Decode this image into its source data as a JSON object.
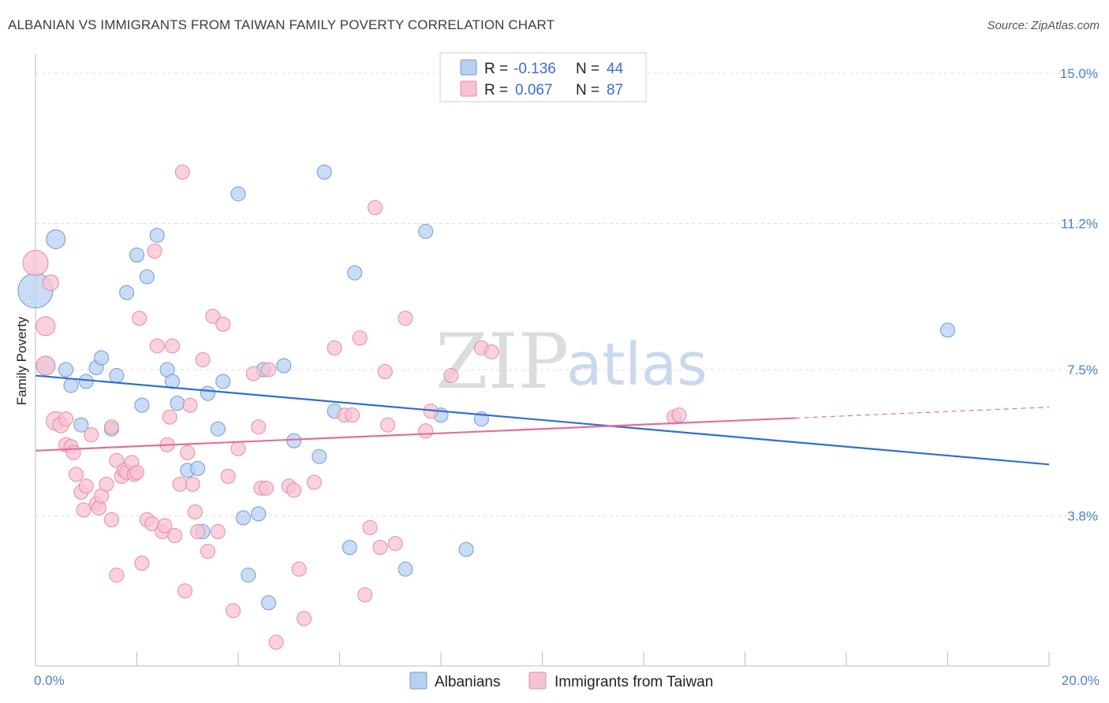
{
  "header": {
    "title": "ALBANIAN VS IMMIGRANTS FROM TAIWAN FAMILY POVERTY CORRELATION CHART",
    "source": "Source: ZipAtlas.com"
  },
  "watermark": {
    "zip": "ZIP",
    "atlas": "atlas"
  },
  "colors": {
    "blue_fill": "#b8d0f1",
    "blue_stroke": "#6f9ad8",
    "blue_line": "#2f6fcf",
    "pink_fill": "#f7c3d2",
    "pink_stroke": "#e88aa6",
    "pink_line": "#e0709a",
    "grid": "#dddddd",
    "axis_tick_label": "#4a7fd0"
  },
  "legend": {
    "rows": [
      {
        "r_label": "R = ",
        "r_value": "-0.136",
        "n_label": "N = ",
        "n_value": "44"
      },
      {
        "r_label": "R = ",
        "r_value": "0.067",
        "n_label": "N = ",
        "n_value": "87"
      }
    ]
  },
  "chart_data": {
    "type": "scatter",
    "title": "ALBANIAN VS IMMIGRANTS FROM TAIWAN FAMILY POVERTY CORRELATION CHART",
    "xlabel": "",
    "ylabel": "Family Poverty",
    "xlim": [
      0,
      20
    ],
    "ylim": [
      0,
      15.3
    ],
    "x_tick_labels": [
      "0.0%",
      "20.0%"
    ],
    "y_ticks": [
      3.8,
      7.5,
      11.2,
      15.0
    ],
    "y_tick_labels": [
      "3.8%",
      "7.5%",
      "11.2%",
      "15.0%"
    ],
    "grid": true,
    "legend_position": "top-center",
    "series": [
      {
        "name": "Albanians",
        "color": "#6f9ad8",
        "trend": {
          "x": [
            0,
            20
          ],
          "y": [
            7.35,
            5.1
          ],
          "dashed_from": null
        },
        "points": [
          [
            0.4,
            10.8,
            12
          ],
          [
            0.0,
            9.5,
            22
          ],
          [
            0.2,
            7.6,
            12
          ],
          [
            0.6,
            7.5,
            9
          ],
          [
            0.7,
            7.1,
            9
          ],
          [
            1.0,
            7.2,
            9
          ],
          [
            1.2,
            7.55,
            9
          ],
          [
            1.3,
            7.8,
            9
          ],
          [
            1.6,
            7.35,
            9
          ],
          [
            0.9,
            6.1,
            9
          ],
          [
            1.5,
            6.0,
            9
          ],
          [
            1.8,
            9.45,
            9
          ],
          [
            2.0,
            10.4,
            9
          ],
          [
            2.2,
            9.85,
            9
          ],
          [
            2.4,
            10.9,
            9
          ],
          [
            2.1,
            6.6,
            9
          ],
          [
            2.6,
            7.5,
            9
          ],
          [
            2.7,
            7.2,
            9
          ],
          [
            2.8,
            6.65,
            9
          ],
          [
            3.4,
            6.9,
            9
          ],
          [
            3.7,
            7.2,
            9
          ],
          [
            3.0,
            4.95,
            9
          ],
          [
            3.2,
            5.0,
            9
          ],
          [
            3.3,
            3.4,
            9
          ],
          [
            3.6,
            6.0,
            9
          ],
          [
            4.0,
            11.95,
            9
          ],
          [
            4.1,
            3.75,
            9
          ],
          [
            4.2,
            2.3,
            9
          ],
          [
            4.4,
            3.85,
            9
          ],
          [
            4.5,
            7.5,
            9
          ],
          [
            4.9,
            7.6,
            9
          ],
          [
            4.6,
            1.6,
            9
          ],
          [
            5.1,
            5.7,
            9
          ],
          [
            5.6,
            5.3,
            9
          ],
          [
            5.7,
            12.5,
            9
          ],
          [
            5.9,
            6.45,
            9
          ],
          [
            6.2,
            3.0,
            9
          ],
          [
            6.3,
            9.95,
            9
          ],
          [
            7.3,
            2.45,
            9
          ],
          [
            7.7,
            11.0,
            9
          ],
          [
            8.0,
            6.35,
            9
          ],
          [
            8.5,
            2.95,
            9
          ],
          [
            8.8,
            6.25,
            9
          ],
          [
            18.0,
            8.5,
            9
          ]
        ]
      },
      {
        "name": "Immigrants from Taiwan",
        "color": "#e88aa6",
        "trend": {
          "x": [
            0,
            20
          ],
          "y": [
            5.45,
            6.55
          ],
          "dashed_from": 15.0
        },
        "points": [
          [
            0.0,
            10.2,
            16
          ],
          [
            0.2,
            8.6,
            12
          ],
          [
            0.2,
            7.6,
            12
          ],
          [
            0.3,
            9.7,
            10
          ],
          [
            0.4,
            6.2,
            12
          ],
          [
            0.5,
            6.1,
            10
          ],
          [
            0.6,
            6.25,
            9
          ],
          [
            0.6,
            5.6,
            9
          ],
          [
            0.7,
            5.55,
            9
          ],
          [
            0.75,
            5.4,
            9
          ],
          [
            0.8,
            4.85,
            9
          ],
          [
            0.9,
            4.4,
            9
          ],
          [
            0.95,
            3.95,
            9
          ],
          [
            1.0,
            4.55,
            9
          ],
          [
            1.1,
            5.85,
            9
          ],
          [
            1.2,
            4.1,
            9
          ],
          [
            1.25,
            4.0,
            9
          ],
          [
            1.3,
            4.3,
            9
          ],
          [
            1.4,
            4.6,
            9
          ],
          [
            1.5,
            6.05,
            9
          ],
          [
            1.5,
            3.7,
            9
          ],
          [
            1.6,
            5.2,
            9
          ],
          [
            1.6,
            2.3,
            9
          ],
          [
            1.7,
            4.8,
            9
          ],
          [
            1.75,
            4.95,
            9
          ],
          [
            1.8,
            4.9,
            9
          ],
          [
            1.9,
            5.15,
            9
          ],
          [
            1.95,
            4.85,
            9
          ],
          [
            2.0,
            4.9,
            9
          ],
          [
            2.05,
            8.8,
            9
          ],
          [
            2.1,
            2.6,
            9
          ],
          [
            2.2,
            3.7,
            9
          ],
          [
            2.3,
            3.6,
            9
          ],
          [
            2.35,
            10.5,
            9
          ],
          [
            2.4,
            8.1,
            9
          ],
          [
            2.5,
            3.4,
            9
          ],
          [
            2.55,
            3.55,
            9
          ],
          [
            2.6,
            5.6,
            9
          ],
          [
            2.65,
            6.3,
            9
          ],
          [
            2.7,
            8.1,
            9
          ],
          [
            2.75,
            3.3,
            9
          ],
          [
            2.85,
            4.6,
            9
          ],
          [
            2.9,
            12.5,
            9
          ],
          [
            2.95,
            1.9,
            9
          ],
          [
            3.0,
            5.4,
            9
          ],
          [
            3.05,
            6.6,
            9
          ],
          [
            3.1,
            4.6,
            9
          ],
          [
            3.15,
            3.9,
            9
          ],
          [
            3.2,
            3.4,
            9
          ],
          [
            3.3,
            7.75,
            9
          ],
          [
            3.4,
            2.9,
            9
          ],
          [
            3.5,
            8.85,
            9
          ],
          [
            3.6,
            3.4,
            9
          ],
          [
            3.7,
            8.65,
            9
          ],
          [
            3.8,
            4.8,
            9
          ],
          [
            3.9,
            1.4,
            9
          ],
          [
            4.0,
            5.5,
            9
          ],
          [
            4.3,
            7.4,
            9
          ],
          [
            4.4,
            6.05,
            9
          ],
          [
            4.45,
            4.5,
            9
          ],
          [
            4.55,
            4.5,
            9
          ],
          [
            4.6,
            7.5,
            9
          ],
          [
            4.75,
            0.6,
            9
          ],
          [
            5.0,
            4.55,
            9
          ],
          [
            5.1,
            4.45,
            9
          ],
          [
            5.2,
            2.45,
            9
          ],
          [
            5.3,
            1.2,
            9
          ],
          [
            5.5,
            4.65,
            9
          ],
          [
            5.9,
            8.05,
            9
          ],
          [
            6.1,
            6.35,
            9
          ],
          [
            6.25,
            6.35,
            9
          ],
          [
            6.4,
            8.3,
            9
          ],
          [
            6.5,
            1.8,
            9
          ],
          [
            6.6,
            3.5,
            9
          ],
          [
            6.7,
            11.6,
            9
          ],
          [
            6.8,
            3.0,
            9
          ],
          [
            6.9,
            7.45,
            9
          ],
          [
            6.95,
            6.1,
            9
          ],
          [
            7.1,
            3.1,
            9
          ],
          [
            7.3,
            8.8,
            9
          ],
          [
            7.7,
            5.95,
            9
          ],
          [
            7.8,
            6.45,
            9
          ],
          [
            8.2,
            7.35,
            9
          ],
          [
            8.8,
            8.05,
            9
          ],
          [
            9.0,
            7.95,
            9
          ],
          [
            12.6,
            6.3,
            9
          ],
          [
            12.7,
            6.35,
            9
          ]
        ]
      }
    ]
  },
  "bottom_legend": [
    {
      "label": "Albanians",
      "swatch": "blue"
    },
    {
      "label": "Immigrants from Taiwan",
      "swatch": "pink"
    }
  ]
}
